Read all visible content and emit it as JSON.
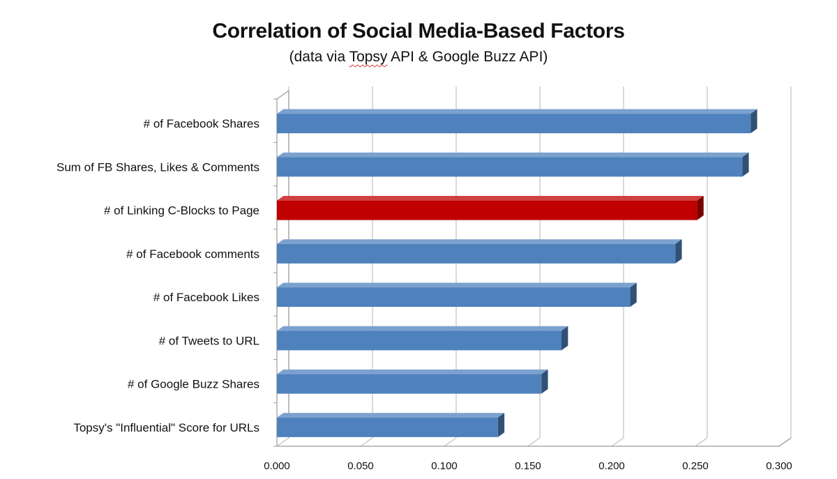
{
  "chart_data": {
    "type": "bar",
    "orientation": "horizontal",
    "title": "Correlation of Social Media-Based Factors",
    "subtitle_parts": [
      "(data via ",
      "Topsy",
      " API & Google Buzz API)"
    ],
    "categories": [
      "# of Facebook Shares",
      "Sum of FB Shares, Likes & Comments",
      "# of Linking C-Blocks to Page",
      "# of Facebook comments",
      "# of Facebook Likes",
      "# of Tweets to URL",
      "# of Google Buzz Shares",
      "Topsy's \"Influential\" Score for URLs"
    ],
    "values": [
      0.283,
      0.278,
      0.251,
      0.238,
      0.211,
      0.17,
      0.158,
      0.132
    ],
    "highlight_index": 2,
    "colors": {
      "bar": "#4f81bd",
      "highlight": "#c00000",
      "grid": "#c0c0c0"
    },
    "xlim": [
      0,
      0.3
    ],
    "xticks": [
      "0.000",
      "0.050",
      "0.100",
      "0.150",
      "0.200",
      "0.250",
      "0.300"
    ],
    "grid": true,
    "legend": "none"
  }
}
